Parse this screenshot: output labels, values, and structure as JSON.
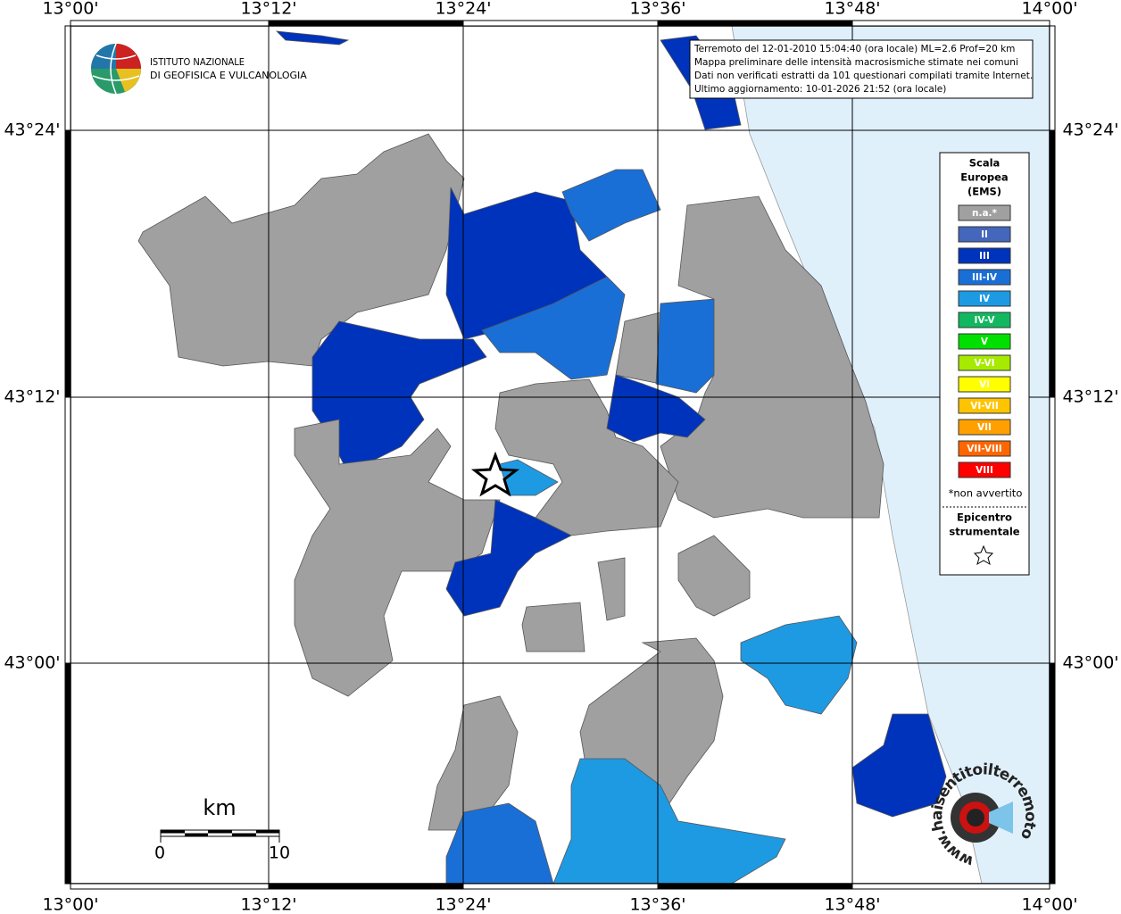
{
  "map": {
    "x_labels": [
      "13°00'",
      "13°12'",
      "13°24'",
      "13°36'",
      "13°48'",
      "14°00'"
    ],
    "y_labels": [
      "43°24'",
      "43°12'",
      "43°00'"
    ],
    "info": [
      "Terremoto del 12-01-2010 15:04:40 (ora locale) ML=2.6 Prof=20 km",
      "Mappa preliminare delle intensità macrosismiche stimate nei comuni",
      "Dati non verificati estratti da 101 questionari compilati tramite Internet.",
      "Ultimo aggiornamento: 10-01-2026 21:52 (ora locale)"
    ],
    "logo": [
      "ISTITUTO NAZIONALE",
      "DI GEOFISICA E VULCANOLOGIA"
    ],
    "legend": {
      "title": [
        "Scala",
        "Europea",
        "(EMS)"
      ],
      "classes": [
        {
          "label": "n.a.*",
          "color": "#a0a0a0"
        },
        {
          "label": "II",
          "color": "#4466bb"
        },
        {
          "label": "III",
          "color": "#0033bb"
        },
        {
          "label": "III-IV",
          "color": "#1a6fd6"
        },
        {
          "label": "IV",
          "color": "#1e9ae3"
        },
        {
          "label": "IV-V",
          "color": "#11b860"
        },
        {
          "label": "V",
          "color": "#00e000"
        },
        {
          "label": "V-VI",
          "color": "#a6ea00"
        },
        {
          "label": "VI",
          "color": "#ffff00"
        },
        {
          "label": "VI-VII",
          "color": "#ffc400"
        },
        {
          "label": "VII",
          "color": "#ffa000"
        },
        {
          "label": "VII-VIII",
          "color": "#ff6600"
        },
        {
          "label": "VIII",
          "color": "#ff0000"
        }
      ],
      "note": "*non avvertito",
      "epicenter": [
        "Epicentro",
        "strumentale"
      ]
    },
    "scale": {
      "unit": "km",
      "labels": [
        "0",
        "10"
      ]
    },
    "watermark": "www.haisentitoilterremoto.it"
  }
}
